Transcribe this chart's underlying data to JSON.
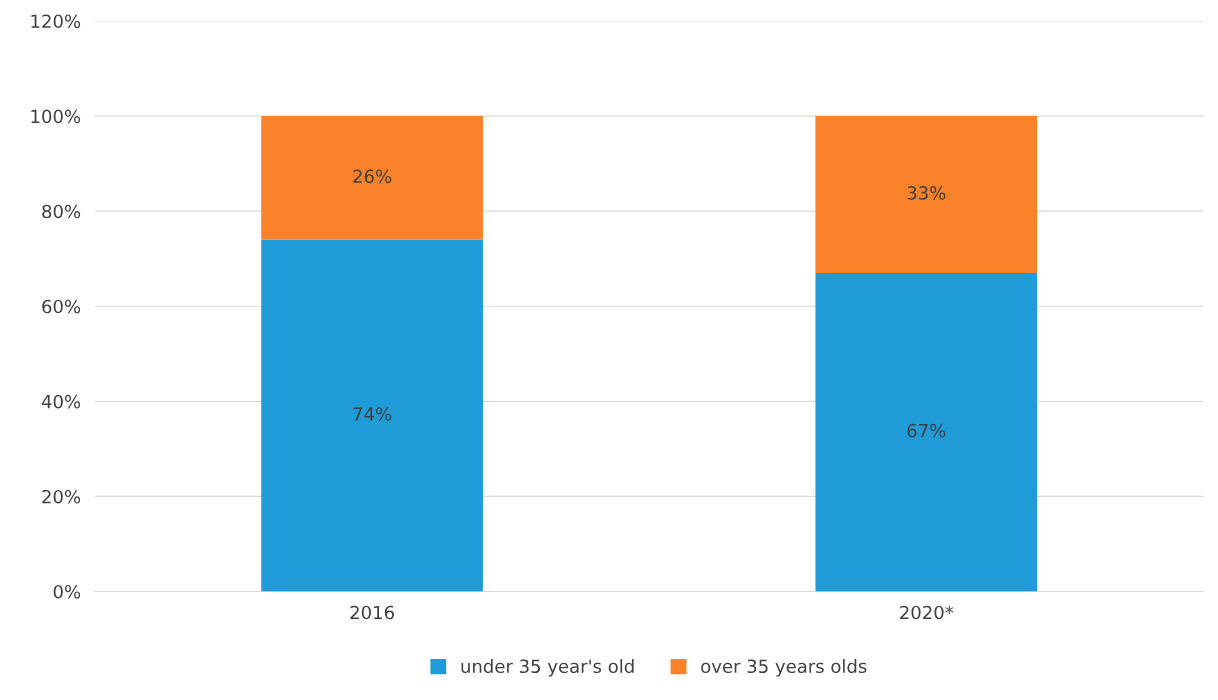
{
  "chart_data": {
    "type": "bar",
    "stacked": true,
    "categories": [
      "2016",
      "2020*"
    ],
    "series": [
      {
        "name": "under 35 year's old",
        "color": "#1f9bd8",
        "values": [
          74,
          67
        ],
        "value_labels": [
          "74%",
          "67%"
        ]
      },
      {
        "name": "over 35 years olds",
        "color": "#f98228",
        "values": [
          26,
          33
        ],
        "value_labels": [
          "26%",
          "33%"
        ]
      }
    ],
    "ylim": [
      0,
      120
    ],
    "yticks": [
      {
        "value": 0,
        "label": "0%"
      },
      {
        "value": 20,
        "label": "20%"
      },
      {
        "value": 40,
        "label": "40%"
      },
      {
        "value": 60,
        "label": "60%"
      },
      {
        "value": 80,
        "label": "80%"
      },
      {
        "value": 100,
        "label": "100%"
      },
      {
        "value": 120,
        "label": "120%"
      }
    ],
    "grid": "y",
    "legend": "bottom"
  }
}
